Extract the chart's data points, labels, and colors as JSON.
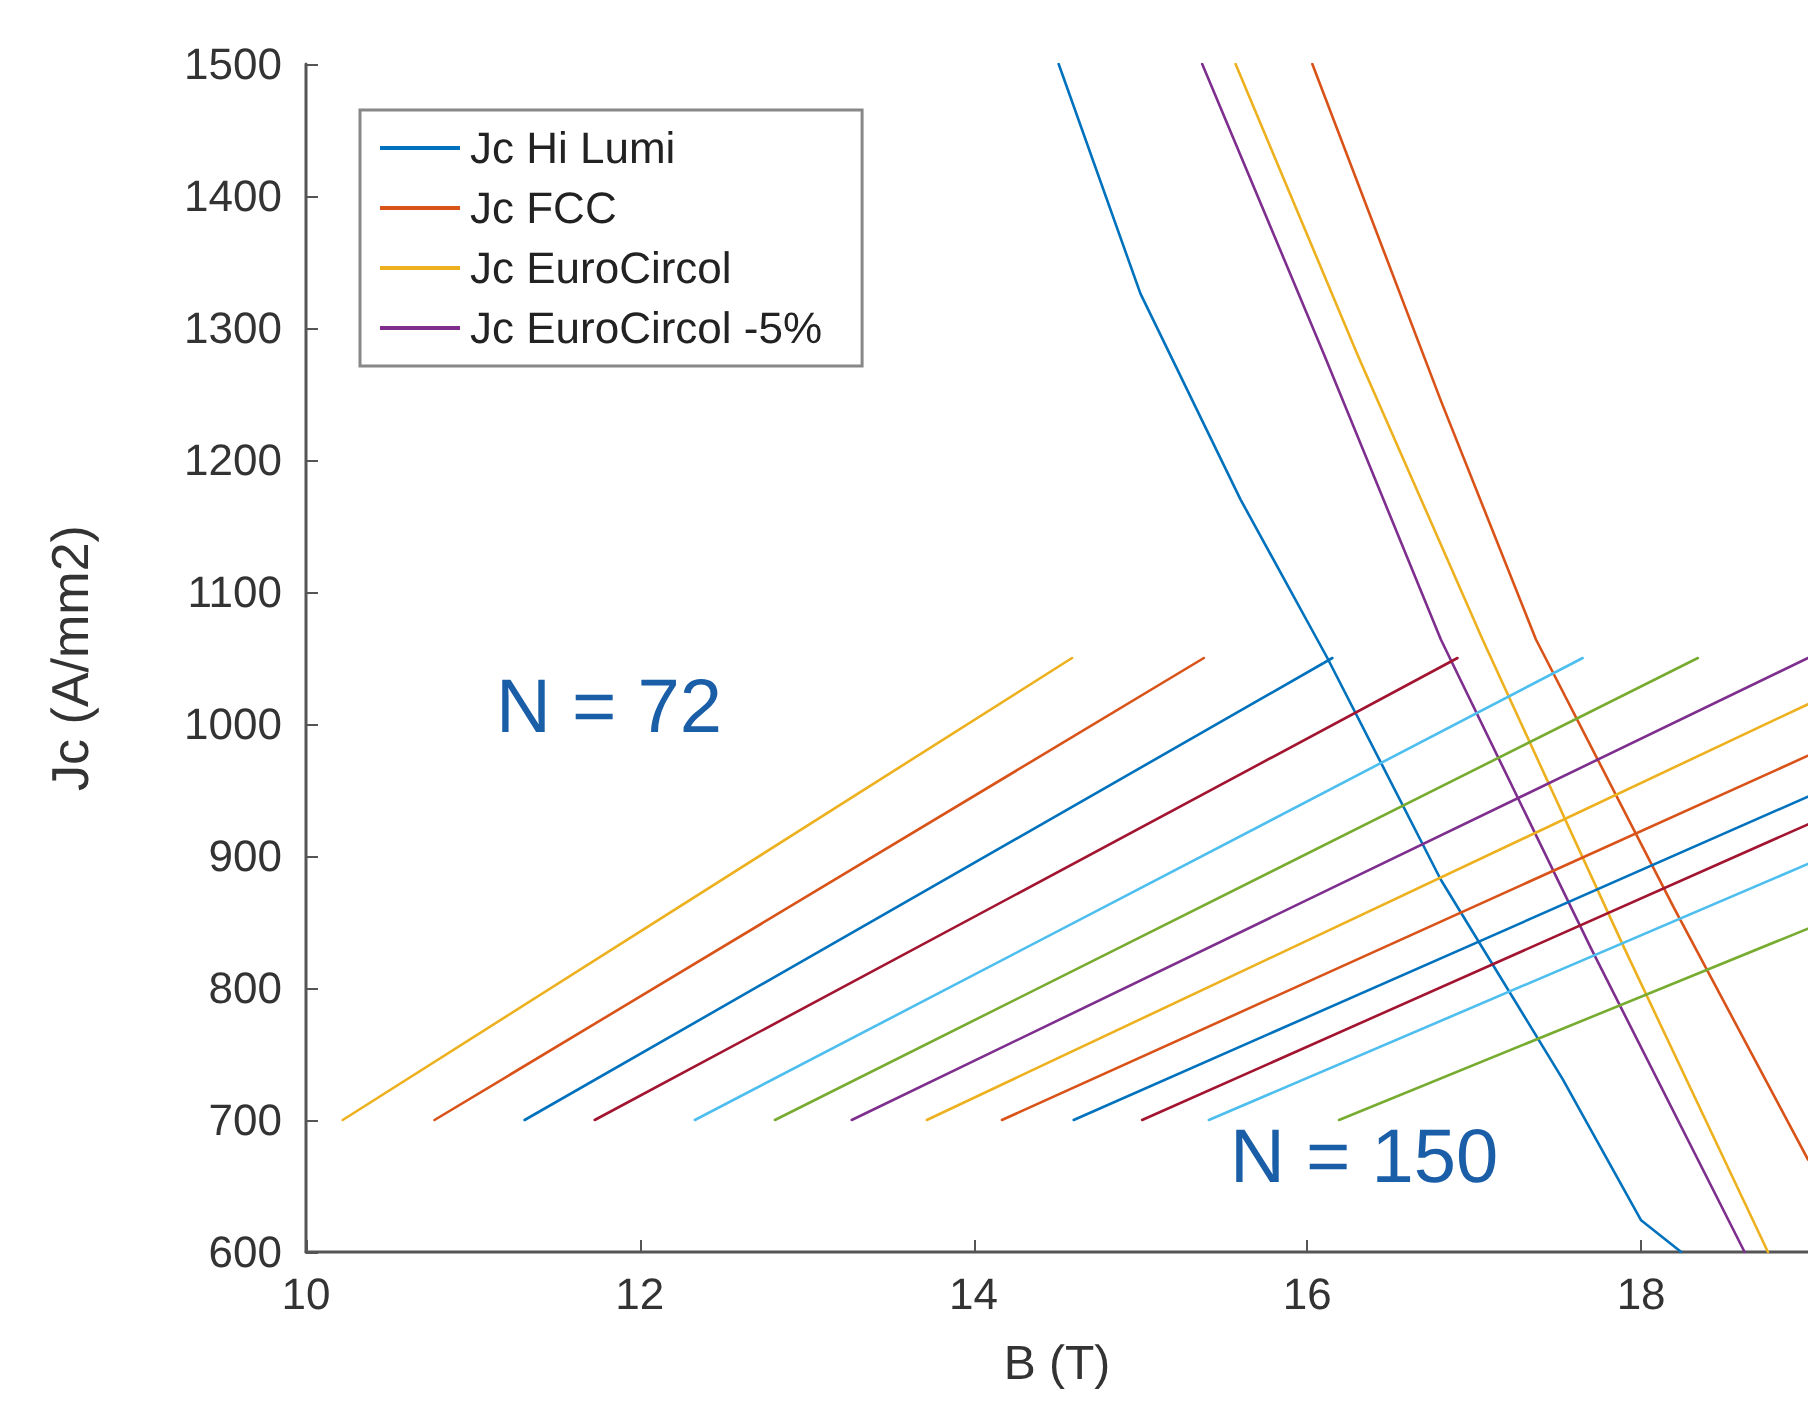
{
  "chart_data": {
    "type": "line",
    "xlabel": "B (T)",
    "ylabel": "Jc (A/mm2)",
    "xlim": [
      10,
      19
    ],
    "xticks": [
      10,
      12,
      14,
      16,
      18
    ],
    "ylim": [
      600,
      1500
    ],
    "yticks": [
      600,
      700,
      800,
      900,
      1000,
      1100,
      1200,
      1300,
      1400,
      1500
    ],
    "grid": false,
    "legend": "top left",
    "marker": "none",
    "line_style": "solid",
    "annotations": [
      "N = 72",
      "N = 150"
    ],
    "series": [
      {
        "name": "Jc Hi Lumi",
        "color": "#0072bd",
        "x": [
          14.51,
          15.0,
          15.6,
          16.12,
          16.8,
          17.53,
          18.0,
          18.24
        ],
        "values": [
          1500,
          1326,
          1170,
          1050,
          882,
          731,
          624,
          600
        ]
      },
      {
        "name": "Jc FCC",
        "color": "#d95319",
        "x": [
          16.03,
          16.8,
          17.37,
          18.2,
          19.0
        ],
        "values": [
          1500,
          1245,
          1064,
          860,
          670
        ]
      },
      {
        "name": "Jc EuroCircol",
        "color": "#edb120",
        "x": [
          15.57,
          16.3,
          17.05,
          17.9,
          18.76
        ],
        "values": [
          1500,
          1280,
          1064,
          830,
          600
        ]
      },
      {
        "name": "Jc EuroCircol -5%",
        "color": "#7e2f8e",
        "x": [
          15.37,
          16.1,
          16.8,
          17.7,
          18.62
        ],
        "values": [
          1500,
          1280,
          1064,
          830,
          600
        ]
      },
      {
        "color": "#edb120",
        "x": [
          10.22,
          14.59
        ],
        "values": [
          700,
          1050
        ]
      },
      {
        "color": "#d95319",
        "x": [
          10.77,
          15.38
        ],
        "values": [
          700,
          1050
        ]
      },
      {
        "color": "#0072bd",
        "x": [
          11.31,
          16.15
        ],
        "values": [
          700,
          1050
        ]
      },
      {
        "color": "#a2142f",
        "x": [
          11.73,
          16.9
        ],
        "values": [
          700,
          1050
        ]
      },
      {
        "color": "#4dbeee",
        "x": [
          12.33,
          17.65
        ],
        "values": [
          700,
          1050
        ]
      },
      {
        "color": "#77ac30",
        "x": [
          12.81,
          18.34
        ],
        "values": [
          700,
          1050
        ]
      },
      {
        "color": "#7e2f8e",
        "x": [
          13.27,
          19.0
        ],
        "values": [
          700,
          1050
        ]
      },
      {
        "color": "#edb120",
        "x": [
          13.72,
          19.0
        ],
        "values": [
          700,
          1015
        ]
      },
      {
        "color": "#d95319",
        "x": [
          14.17,
          19.0
        ],
        "values": [
          700,
          976
        ]
      },
      {
        "color": "#0072bd",
        "x": [
          14.6,
          19.0
        ],
        "values": [
          700,
          945
        ]
      },
      {
        "color": "#a2142f",
        "x": [
          15.01,
          19.0
        ],
        "values": [
          700,
          924
        ]
      },
      {
        "color": "#4dbeee",
        "x": [
          15.41,
          19.0
        ],
        "values": [
          700,
          894
        ]
      },
      {
        "color": "#77ac30",
        "x": [
          16.19,
          19.0
        ],
        "values": [
          700,
          845
        ]
      }
    ]
  }
}
